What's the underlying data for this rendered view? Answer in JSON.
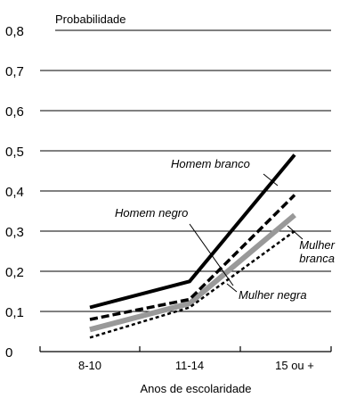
{
  "chart_data": {
    "type": "line",
    "ylabel": "Probabilidade",
    "xlabel": "Anos de escolaridade",
    "categories": [
      "8-10",
      "11-14",
      "15 ou +"
    ],
    "ylim": [
      0,
      0.8
    ],
    "yticks": [
      "0",
      "0,1",
      "0,2",
      "0,3",
      "0,4",
      "0,5",
      "0,6",
      "0,7",
      "0,8"
    ],
    "grid": true,
    "series": [
      {
        "name": "Homem branco",
        "values": [
          0.11,
          0.175,
          0.49
        ],
        "color": "#000000",
        "style": "solid"
      },
      {
        "name": "Homem negro",
        "values": [
          0.08,
          0.13,
          0.39
        ],
        "color": "#000000",
        "style": "dashed"
      },
      {
        "name": "Mulher branca",
        "values": [
          0.055,
          0.12,
          0.34
        ],
        "color": "#999999",
        "style": "solid"
      },
      {
        "name": "Mulher negra",
        "values": [
          0.035,
          0.11,
          0.3
        ],
        "color": "#000000",
        "style": "dotted"
      }
    ],
    "annotations": [
      {
        "series": "Homem branco",
        "lines": [
          "Homem branco"
        ]
      },
      {
        "series": "Homem negro",
        "lines": [
          "Homem negro"
        ]
      },
      {
        "series": "Mulher branca",
        "lines": [
          "Mulher",
          "branca"
        ]
      },
      {
        "series": "Mulher negra",
        "lines": [
          "Mulher negra"
        ]
      }
    ]
  }
}
